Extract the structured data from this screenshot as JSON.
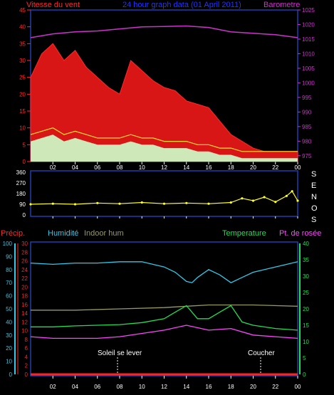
{
  "header": {
    "wind_label": "Vitesse du vent",
    "title": "24 hour graph data  (01 April 2011)",
    "barometer_label": "Barometre"
  },
  "direction_axis": {
    "letters": [
      "S",
      "E",
      "N",
      "O",
      "S"
    ]
  },
  "lower_header": {
    "precip_label": "Précip.",
    "humidity_label": "Humidité",
    "indoor_label": "Indoor hum",
    "temperature_label": "Temperature",
    "dewpoint_label": "Pt. de rosée"
  },
  "annotations": {
    "sunrise": "Soleil se lever",
    "sunset": "Coucher"
  },
  "colors": {
    "wind_axis": "#ff2a2a",
    "barometer": "#cc33cc",
    "title": "#2233ff",
    "direction": "#ffff22",
    "humidity": "#33c8e8",
    "indoor": "#999966",
    "temperature": "#22dd55",
    "dewpoint": "#ff44ff",
    "precip": "#ff2222",
    "frame": "#1e3fae"
  },
  "chart_data": [
    {
      "type": "line",
      "title": "24 hour graph data  (01 April 2011)",
      "x_ticks": [
        "02",
        "04",
        "06",
        "08",
        "10",
        "12",
        "14",
        "16",
        "18",
        "20",
        "22",
        "00"
      ],
      "left_axis": {
        "label": "Vitesse du vent",
        "ticks": [
          0,
          5,
          10,
          15,
          20,
          25,
          30,
          35,
          40,
          45
        ],
        "range": [
          0,
          45
        ]
      },
      "right_axis": {
        "label": "Barometre",
        "ticks": [
          975,
          980,
          985,
          990,
          995,
          1000,
          1005,
          1010,
          1015,
          1020,
          1025
        ],
        "range": [
          973,
          1025
        ]
      },
      "series": [
        {
          "name": "Vitesse du vent",
          "hours": [
            0,
            1,
            2,
            3,
            4,
            5,
            6,
            7,
            8,
            9,
            10,
            11,
            12,
            13,
            14,
            15,
            16,
            17,
            18,
            19,
            20,
            21,
            22,
            23,
            24
          ],
          "gust_peak": [
            25,
            32,
            35,
            30,
            33,
            28,
            25,
            22,
            20,
            30,
            27,
            24,
            22,
            21,
            18,
            17,
            16,
            12,
            8,
            6,
            4,
            3,
            3,
            3,
            3
          ],
          "mean": [
            6,
            7,
            8,
            6,
            7,
            6,
            5,
            5,
            5,
            6,
            5,
            5,
            4,
            4,
            4,
            3,
            3,
            2,
            2,
            1,
            1,
            1,
            1,
            1,
            1
          ]
        },
        {
          "name": "Barometre",
          "hours": [
            0,
            2,
            4,
            6,
            8,
            10,
            12,
            14,
            16,
            18,
            20,
            22,
            24
          ],
          "values": [
            1015.5,
            1016.8,
            1017.5,
            1017.8,
            1018.5,
            1019.2,
            1019.3,
            1019.5,
            1019.0,
            1017.5,
            1017.0,
            1016.5,
            1015.5
          ]
        }
      ]
    },
    {
      "type": "scatter",
      "x_ticks": [
        "02",
        "04",
        "06",
        "08",
        "10",
        "12",
        "14",
        "16",
        "18",
        "20",
        "22",
        "00"
      ],
      "y_ticks": [
        0,
        90,
        180,
        270,
        360
      ],
      "range": [
        0,
        360
      ],
      "series": [
        {
          "name": "Direction",
          "hours": [
            0,
            2,
            4,
            6,
            8,
            10,
            12,
            14,
            16,
            18,
            19,
            20,
            21,
            22,
            23,
            23.5,
            24
          ],
          "values": [
            90,
            95,
            90,
            100,
            95,
            105,
            95,
            100,
            95,
            105,
            140,
            120,
            150,
            110,
            160,
            200,
            120
          ]
        }
      ]
    },
    {
      "type": "line",
      "x_ticks": [
        "02",
        "04",
        "06",
        "08",
        "10",
        "12",
        "14",
        "16",
        "18",
        "20",
        "22",
        "00"
      ],
      "axes": {
        "humidity": {
          "label": "Humidité",
          "ticks": [
            0,
            10,
            20,
            30,
            40,
            50,
            60,
            70,
            80,
            90,
            100
          ]
        },
        "precip": {
          "label": "Précip.",
          "ticks": [
            0,
            2,
            4,
            6,
            8,
            10,
            12,
            14,
            16,
            18,
            20,
            22,
            24,
            26,
            28,
            30
          ]
        },
        "temperature": {
          "label": "Temperature",
          "ticks": [
            0,
            5,
            10,
            15,
            20,
            25,
            30,
            35,
            40
          ]
        }
      },
      "series": [
        {
          "name": "Humidité",
          "hours": [
            0,
            2,
            4,
            6,
            8,
            10,
            12,
            13,
            14,
            14.5,
            15,
            16,
            17,
            18,
            19,
            20,
            22,
            24
          ],
          "values": [
            85,
            84,
            85,
            85,
            86,
            86,
            82,
            78,
            71,
            70,
            74,
            80,
            76,
            70,
            74,
            78,
            82,
            86
          ]
        },
        {
          "name": "Indoor hum",
          "hours": [
            0,
            4,
            8,
            12,
            14,
            16,
            18,
            20,
            24
          ],
          "values": [
            49,
            49,
            50,
            51,
            52,
            53,
            53,
            53,
            52
          ]
        },
        {
          "name": "Temperature",
          "hours": [
            0,
            2,
            4,
            6,
            8,
            10,
            12,
            13,
            14,
            15,
            16,
            17,
            18,
            19,
            20,
            22,
            24
          ],
          "values": [
            14.5,
            14.5,
            14.8,
            15,
            15.2,
            15.8,
            17,
            19,
            21,
            17,
            17,
            19,
            21,
            16,
            15,
            14,
            13.5
          ]
        },
        {
          "name": "Pt. de rosée",
          "hours": [
            0,
            2,
            4,
            6,
            8,
            10,
            12,
            14,
            16,
            18,
            20,
            22,
            24
          ],
          "values": [
            11.5,
            11,
            11,
            11,
            11.5,
            12.5,
            13.5,
            15,
            13.5,
            14,
            12,
            11.5,
            11
          ]
        },
        {
          "name": "Précip.",
          "hours": [
            0,
            24
          ],
          "values": [
            0,
            0
          ]
        }
      ]
    }
  ]
}
